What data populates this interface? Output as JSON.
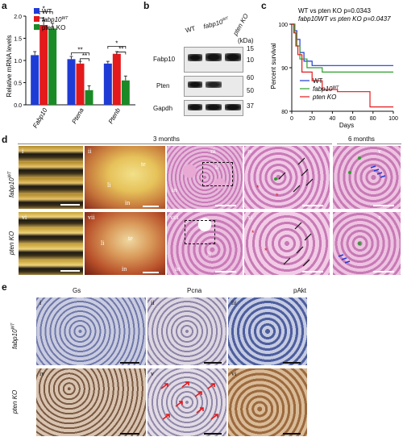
{
  "panels": {
    "a": "a",
    "b": "b",
    "c": "c",
    "d": "d",
    "e": "e"
  },
  "panel_a": {
    "ylabel": "Relative mRNA levels",
    "legend": [
      "WT",
      "fabp10WT",
      "pten KO"
    ],
    "legend_colors": [
      "#1f3bd6",
      "#e3191c",
      "#1a8a26"
    ],
    "genes": [
      "Fabp10",
      "Ptena",
      "Ptenb"
    ],
    "yticks": [
      "0.0",
      "0.5",
      "1.0",
      "1.5",
      "2.0"
    ],
    "sig": [
      "*",
      "*",
      "**",
      "**",
      "*",
      "**"
    ]
  },
  "chart_data": {
    "type": "bar",
    "categories": [
      "Fabp10",
      "Ptena",
      "Ptenb"
    ],
    "series": [
      {
        "name": "WT",
        "values": [
          1.12,
          1.03,
          0.93
        ]
      },
      {
        "name": "fabp10WT",
        "values": [
          1.8,
          0.93,
          1.15
        ]
      },
      {
        "name": "pten KO",
        "values": [
          1.72,
          0.33,
          0.55
        ]
      }
    ],
    "errors": [
      [
        0.08,
        0.06,
        0.05
      ],
      [
        0.1,
        0.05,
        0.05
      ],
      [
        0.12,
        0.1,
        0.1
      ]
    ],
    "ylabel": "Relative mRNA levels",
    "ylim": [
      0,
      2.0
    ]
  },
  "panel_b": {
    "cols": [
      "WT",
      "fabp10WT",
      "pten KO"
    ],
    "rows": [
      "Fabp10",
      "Pten",
      "Gapdh"
    ],
    "kda_label": "(kDa)",
    "markers": [
      "15",
      "10",
      "60",
      "50",
      "37"
    ]
  },
  "panel_c": {
    "pvals": [
      "WT vs pten KO p=0.0343",
      "fabp10WT vs pten KO p=0.0437"
    ],
    "ylabel": "Percent survival",
    "xlabel": "Days",
    "yticks": [
      "80",
      "90",
      "100"
    ],
    "xticks": [
      "0",
      "20",
      "40",
      "60",
      "80",
      "100"
    ],
    "legend": [
      "WT",
      "fabp10WT",
      "pten KO"
    ],
    "colors": [
      "#1f3bd6",
      "#2ca02c",
      "#e3191c"
    ]
  },
  "survival_data": {
    "type": "line",
    "ylim": [
      80,
      100
    ],
    "xlim": [
      0,
      100
    ],
    "series": [
      {
        "name": "WT",
        "x": [
          0,
          3,
          5,
          8,
          12,
          20,
          100
        ],
        "y": [
          100,
          98.5,
          96.5,
          93.5,
          91.5,
          90.5,
          90.5
        ]
      },
      {
        "name": "fabp10WT",
        "x": [
          0,
          3,
          5,
          8,
          15,
          30,
          100
        ],
        "y": [
          100,
          98,
          95,
          92,
          90,
          89,
          89
        ]
      },
      {
        "name": "pten KO",
        "x": [
          0,
          2,
          4,
          6,
          10,
          20,
          30,
          45,
          75,
          77,
          100
        ],
        "y": [
          100,
          98,
          95,
          93,
          89,
          87,
          85,
          84.5,
          84.5,
          81,
          81
        ]
      }
    ]
  },
  "panel_d": {
    "header_3m": "3 months",
    "header_6m": "6 months",
    "row_labels": [
      "fabp10WT",
      "pten KO"
    ],
    "romans_top": [
      "i",
      "ii",
      "iii",
      "iv",
      "v"
    ],
    "romans_bot": [
      "vi",
      "vii",
      "viii",
      "xi",
      "x"
    ],
    "organ_labels": [
      "te",
      "li",
      "in",
      "li",
      "in"
    ],
    "organ_labels_bot": [
      "te",
      "li",
      "in",
      "li",
      "in"
    ]
  },
  "panel_e": {
    "cols": [
      "Gs",
      "Pcna",
      "pAkt"
    ],
    "row_labels": [
      "fabp10WT",
      "pten KO"
    ],
    "romans_top": [
      "i",
      "ii",
      "iii"
    ],
    "romans_bot": [
      "iv",
      "v",
      "vi"
    ]
  }
}
